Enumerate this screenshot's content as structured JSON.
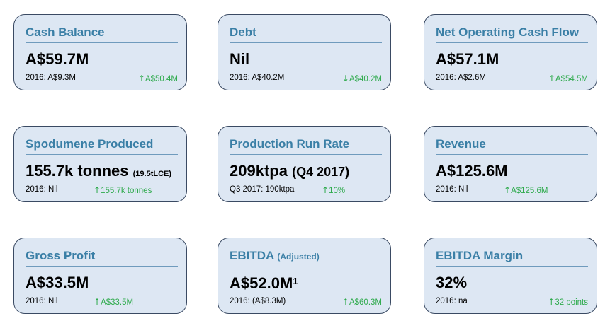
{
  "cards": [
    {
      "title": "Cash Balance",
      "value": "A$59.7M",
      "comparison": "2016: A$9.3M",
      "delta_arrow": "↑",
      "delta": "A$50.4M"
    },
    {
      "title": "Debt",
      "value": "Nil",
      "comparison": "2016: A$40.2M",
      "delta_arrow": "↓",
      "delta": "A$40.2M"
    },
    {
      "title": "Net Operating Cash Flow",
      "value": "A$57.1M",
      "comparison": "2016: A$2.6M",
      "delta_arrow": "↑",
      "delta": "A$54.5M"
    },
    {
      "title": "Spodumene Produced",
      "value": "155.7k tonnes",
      "value_note": "(19.5tLCE)",
      "comparison": "2016: Nil",
      "delta_arrow": "↑",
      "delta": "155.7k tonnes"
    },
    {
      "title": "Production Run Rate",
      "value": "209ktpa",
      "value_note": "(Q4 2017)",
      "comparison": "Q3 2017: 190ktpa",
      "delta_arrow": "↑",
      "delta": "10%"
    },
    {
      "title": "Revenue",
      "value": "A$125.6M",
      "comparison": "2016: Nil",
      "delta_arrow": "↑",
      "delta": "A$125.6M"
    },
    {
      "title": "Gross Profit",
      "value": "A$33.5M",
      "comparison": "2016: Nil",
      "delta_arrow": "↑",
      "delta": "A$33.5M"
    },
    {
      "title": "EBITDA",
      "title_note": "(Adjusted)",
      "value": "A$52.0M",
      "value_footnote": "1",
      "comparison": "2016: (A$8.3M)",
      "delta_arrow": "↑",
      "delta": "A$60.3M"
    },
    {
      "title": "EBITDA Margin",
      "value": "32%",
      "comparison": "2016: na",
      "delta_arrow": "↑",
      "delta": "32 points"
    }
  ],
  "colors": {
    "card_fill": "#dde7f3",
    "card_border": "#3a4a63",
    "title": "#3a7fa6",
    "divider": "#6f9bbd",
    "delta_positive": "#2eaa4c"
  }
}
